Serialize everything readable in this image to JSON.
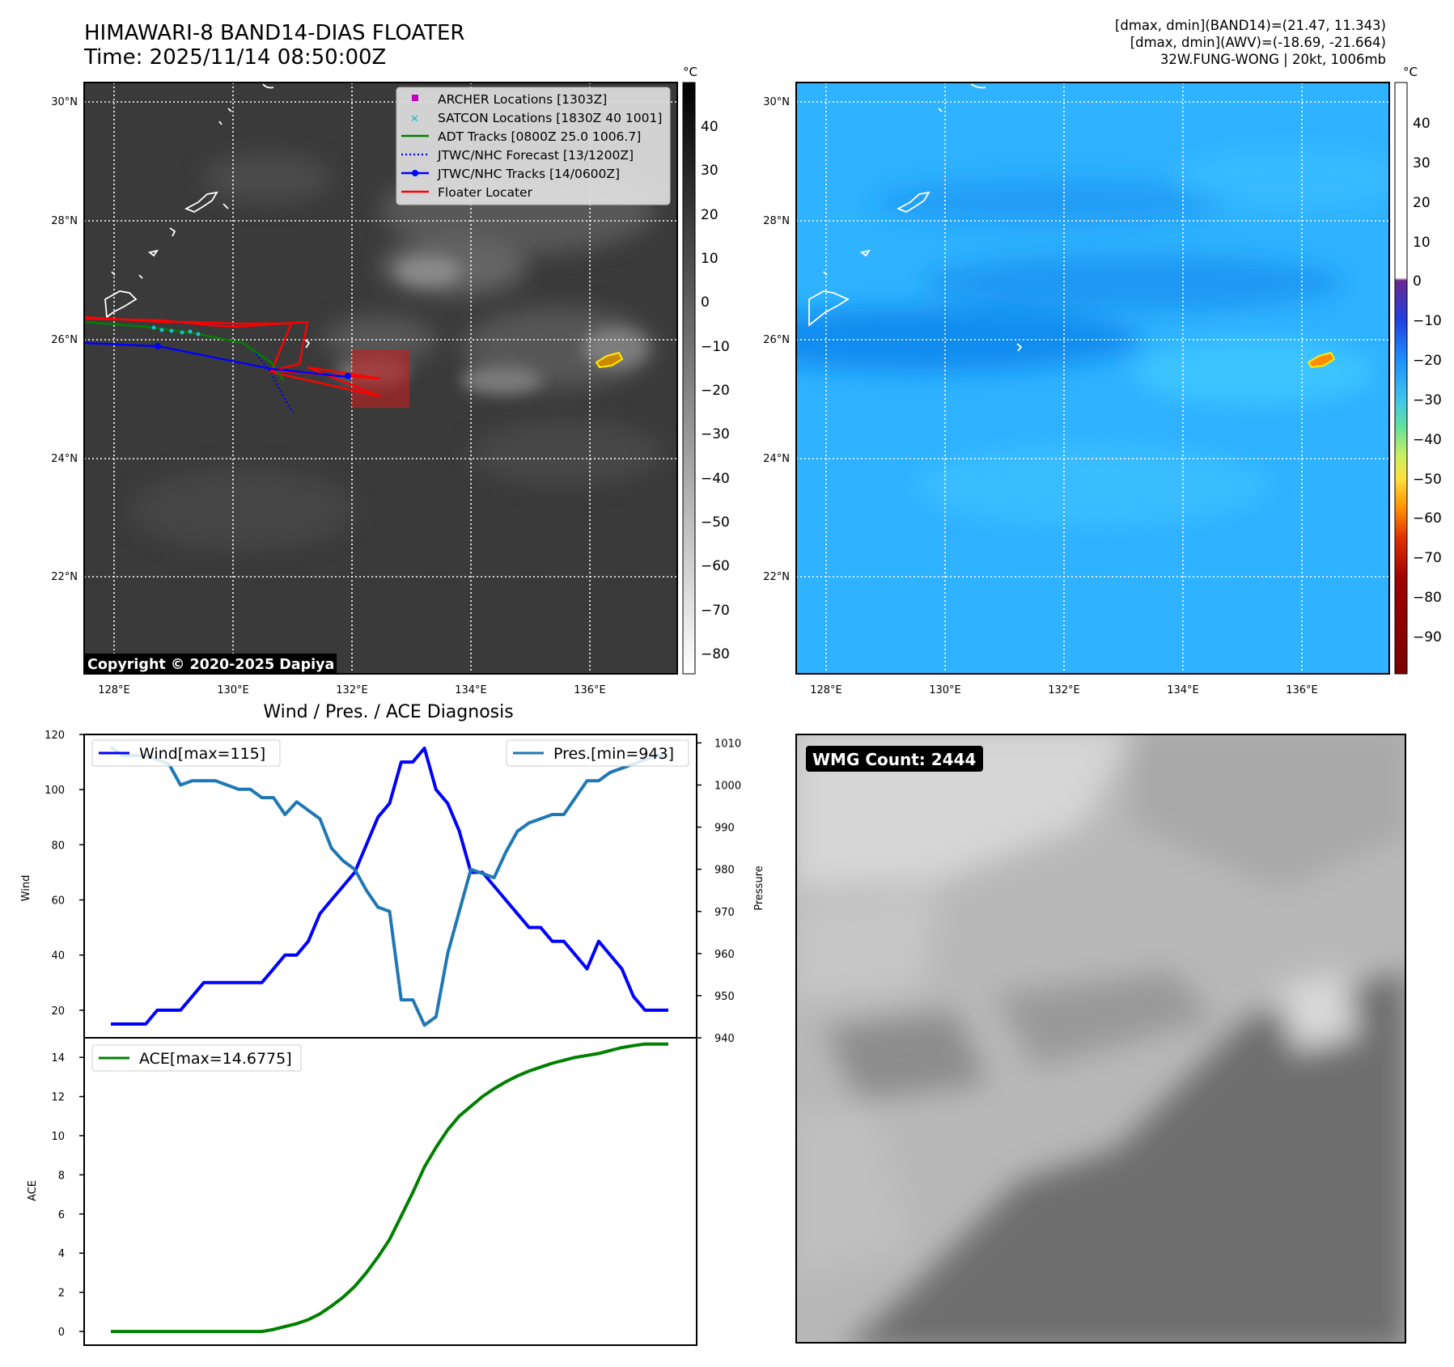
{
  "header": {
    "title": "HIMAWARI-8 BAND14-DIAS FLOATER",
    "time": "Time: 2025/11/14 08:50:00Z",
    "info_lines": [
      "[dmax, dmin](BAND14)=(21.47, 11.343)",
      "[dmax, dmin](AWV)=(-18.69, -21.664)",
      "32W.FUNG-WONG | 20kt, 1006mb"
    ]
  },
  "map_left": {
    "copyright": "Copyright © 2020-2025 Dapiya",
    "lon_labels": [
      "128°E",
      "130°E",
      "132°E",
      "134°E",
      "136°E"
    ],
    "lat_labels": [
      "30°N",
      "28°N",
      "26°N",
      "24°N",
      "22°N"
    ],
    "legend": [
      {
        "label": "ARCHER Locations [1303Z]",
        "color": "#bf00bf",
        "marker": "square"
      },
      {
        "label": "SATCON Locations [1830Z 40 1001]",
        "color": "#17becf",
        "marker": "x"
      },
      {
        "label": "ADT Tracks [0800Z 25.0 1006.7]",
        "color": "#008000",
        "marker": "line"
      },
      {
        "label": "JTWC/NHC Forecast [13/1200Z]",
        "color": "#0000ff",
        "marker": "dotted"
      },
      {
        "label": "JTWC/NHC Tracks [14/0600Z]",
        "color": "#0000ff",
        "marker": "line-dot"
      },
      {
        "label": "Floater Locater",
        "color": "#ff0000",
        "marker": "line"
      }
    ],
    "colorbar": {
      "unit": "°C",
      "ticks": [
        "40",
        "30",
        "20",
        "10",
        "0",
        "−10",
        "−20",
        "−30",
        "−40",
        "−50",
        "−60",
        "−70",
        "−80"
      ]
    }
  },
  "map_right": {
    "lon_labels": [
      "128°E",
      "130°E",
      "132°E",
      "134°E",
      "136°E"
    ],
    "lat_labels": [
      "30°N",
      "28°N",
      "26°N",
      "24°N",
      "22°N"
    ],
    "colorbar": {
      "unit": "°C",
      "ticks": [
        "40",
        "30",
        "20",
        "10",
        "0",
        "−10",
        "−20",
        "−30",
        "−40",
        "−50",
        "−60",
        "−70",
        "−80",
        "−90"
      ]
    }
  },
  "diagnosis": {
    "title": "Wind / Pres. / ACE Diagnosis",
    "wind_ylabel": "Wind",
    "pressure_ylabel": "Pressure",
    "ace_ylabel": "ACE",
    "wind_legend": "Wind[max=115]",
    "pressure_legend": "Pres.[min=943]",
    "ace_legend": "ACE[max=14.6775]"
  },
  "wmg": {
    "label": "WMG Count: 2444"
  },
  "chart_data": [
    {
      "type": "line",
      "title": "Wind / Pres. / ACE Diagnosis",
      "ylabel": "Wind",
      "y2label": "Pressure",
      "ylim": [
        10,
        120
      ],
      "y2lim": [
        940,
        1012
      ],
      "x": [
        0,
        1,
        2,
        3,
        4,
        5,
        6,
        7,
        8,
        9,
        10,
        11,
        12,
        13,
        14,
        15,
        16,
        17,
        18,
        19,
        20,
        21,
        22,
        23,
        24,
        25,
        26,
        27,
        28,
        29,
        30,
        31,
        32,
        33,
        34,
        35,
        36,
        37,
        38,
        39,
        40,
        41,
        42,
        43,
        44,
        45,
        46,
        47,
        48
      ],
      "series": [
        {
          "name": "Wind[max=115]",
          "color": "#0000ff",
          "axis": "left",
          "values": [
            15,
            15,
            15,
            15,
            20,
            20,
            20,
            25,
            30,
            30,
            30,
            30,
            30,
            30,
            35,
            40,
            40,
            45,
            55,
            60,
            65,
            70,
            80,
            90,
            95,
            110,
            110,
            115,
            100,
            95,
            85,
            70,
            70,
            65,
            60,
            55,
            50,
            50,
            45,
            45,
            40,
            35,
            45,
            40,
            35,
            25,
            20,
            20,
            20
          ]
        },
        {
          "name": "Pres.[min=943]",
          "color": "#1f77b4",
          "axis": "right",
          "values": [
            1009,
            1007,
            1007,
            1007,
            1006,
            1005,
            1000,
            1001,
            1001,
            1001,
            1000,
            999,
            999,
            997,
            997,
            993,
            996,
            994,
            992,
            985,
            982,
            980,
            975,
            971,
            970,
            949,
            949,
            943,
            945,
            960,
            970,
            980,
            979,
            978,
            984,
            989,
            991,
            992,
            993,
            993,
            997,
            1001,
            1001,
            1003,
            1004,
            1005,
            1006,
            1007,
            1007
          ]
        }
      ]
    },
    {
      "type": "line",
      "ylabel": "ACE",
      "ylim": [
        -0.7,
        15
      ],
      "x": [
        0,
        1,
        2,
        3,
        4,
        5,
        6,
        7,
        8,
        9,
        10,
        11,
        12,
        13,
        14,
        15,
        16,
        17,
        18,
        19,
        20,
        21,
        22,
        23,
        24,
        25,
        26,
        27,
        28,
        29,
        30,
        31,
        32,
        33,
        34,
        35,
        36,
        37,
        38,
        39,
        40,
        41,
        42,
        43,
        44,
        45,
        46,
        47,
        48
      ],
      "series": [
        {
          "name": "ACE[max=14.6775]",
          "color": "#008000",
          "values": [
            0,
            0,
            0,
            0,
            0,
            0,
            0,
            0,
            0,
            0,
            0,
            0,
            0,
            0,
            0.1,
            0.25,
            0.4,
            0.6,
            0.9,
            1.3,
            1.75,
            2.3,
            3.0,
            3.8,
            4.7,
            5.9,
            7.1,
            8.4,
            9.4,
            10.3,
            11.0,
            11.5,
            12.0,
            12.4,
            12.75,
            13.05,
            13.3,
            13.5,
            13.7,
            13.85,
            14.0,
            14.1,
            14.2,
            14.35,
            14.5,
            14.6,
            14.68,
            14.68,
            14.68
          ]
        }
      ]
    }
  ]
}
